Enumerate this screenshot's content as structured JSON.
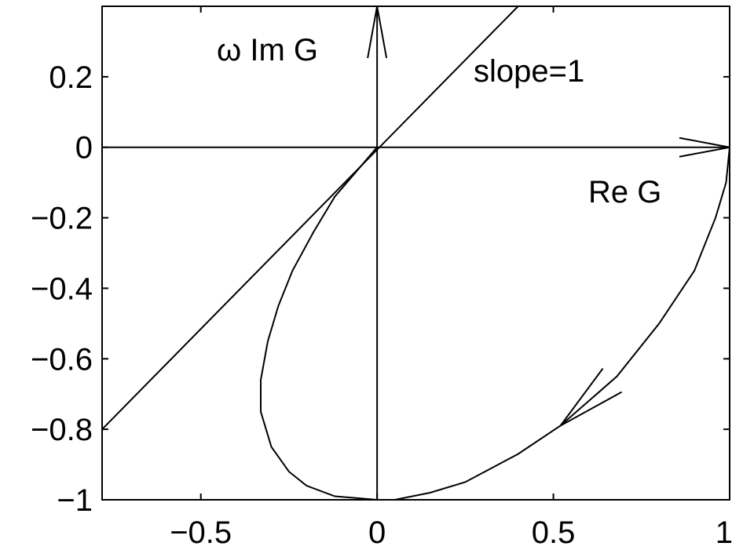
{
  "chart_data": {
    "type": "line",
    "title": "",
    "xlabel": "",
    "ylabel": "",
    "xlim": [
      -0.78,
      1.0
    ],
    "ylim": [
      -1.0,
      0.4
    ],
    "grid": false,
    "x_ticks": [
      {
        "value": -0.5,
        "label": "−0.5"
      },
      {
        "value": 0,
        "label": "0"
      },
      {
        "value": 0.5,
        "label": "0.5"
      },
      {
        "value": 1,
        "label": "1"
      }
    ],
    "y_ticks": [
      {
        "value": 0.2,
        "label": "0.2"
      },
      {
        "value": 0,
        "label": "0"
      },
      {
        "value": -0.2,
        "label": "−0.2"
      },
      {
        "value": -0.4,
        "label": "−0.4"
      },
      {
        "value": -0.6,
        "label": "−0.6"
      },
      {
        "value": -0.8,
        "label": "−0.8"
      },
      {
        "value": -1,
        "label": "−1"
      }
    ],
    "axes_arrows": {
      "real": {
        "from": [
          0,
          0
        ],
        "to": [
          1.0,
          0
        ],
        "label": "Re G"
      },
      "imag": {
        "from": [
          0,
          -1.0
        ],
        "to": [
          0,
          0.4
        ],
        "label": "ω Im G"
      }
    },
    "reference_line": {
      "slope": 1,
      "label": "slope=1",
      "points": [
        [
          -0.78,
          -0.8
        ],
        [
          0.4,
          0.4
        ]
      ]
    },
    "series": [
      {
        "points": [
          [
            1.0,
            0.0
          ],
          [
            0.99,
            -0.1
          ],
          [
            0.96,
            -0.2
          ],
          [
            0.9,
            -0.35
          ],
          [
            0.8,
            -0.5
          ],
          [
            0.68,
            -0.65
          ],
          [
            0.52,
            -0.79
          ],
          [
            0.4,
            -0.87
          ],
          [
            0.25,
            -0.95
          ],
          [
            0.15,
            -0.98
          ],
          [
            0.05,
            -1.0
          ],
          [
            0.0,
            -1.0
          ],
          [
            -0.12,
            -0.99
          ],
          [
            -0.2,
            -0.96
          ],
          [
            -0.25,
            -0.92
          ],
          [
            -0.3,
            -0.85
          ],
          [
            -0.33,
            -0.75
          ],
          [
            -0.33,
            -0.66
          ],
          [
            -0.31,
            -0.55
          ],
          [
            -0.28,
            -0.45
          ],
          [
            -0.24,
            -0.35
          ],
          [
            -0.18,
            -0.24
          ],
          [
            -0.12,
            -0.14
          ],
          [
            -0.06,
            -0.07
          ],
          [
            0.0,
            0.0
          ]
        ]
      }
    ],
    "direction_arrow": {
      "tip": [
        0.52,
        -0.79
      ],
      "points_toward": "decreasing x"
    }
  }
}
